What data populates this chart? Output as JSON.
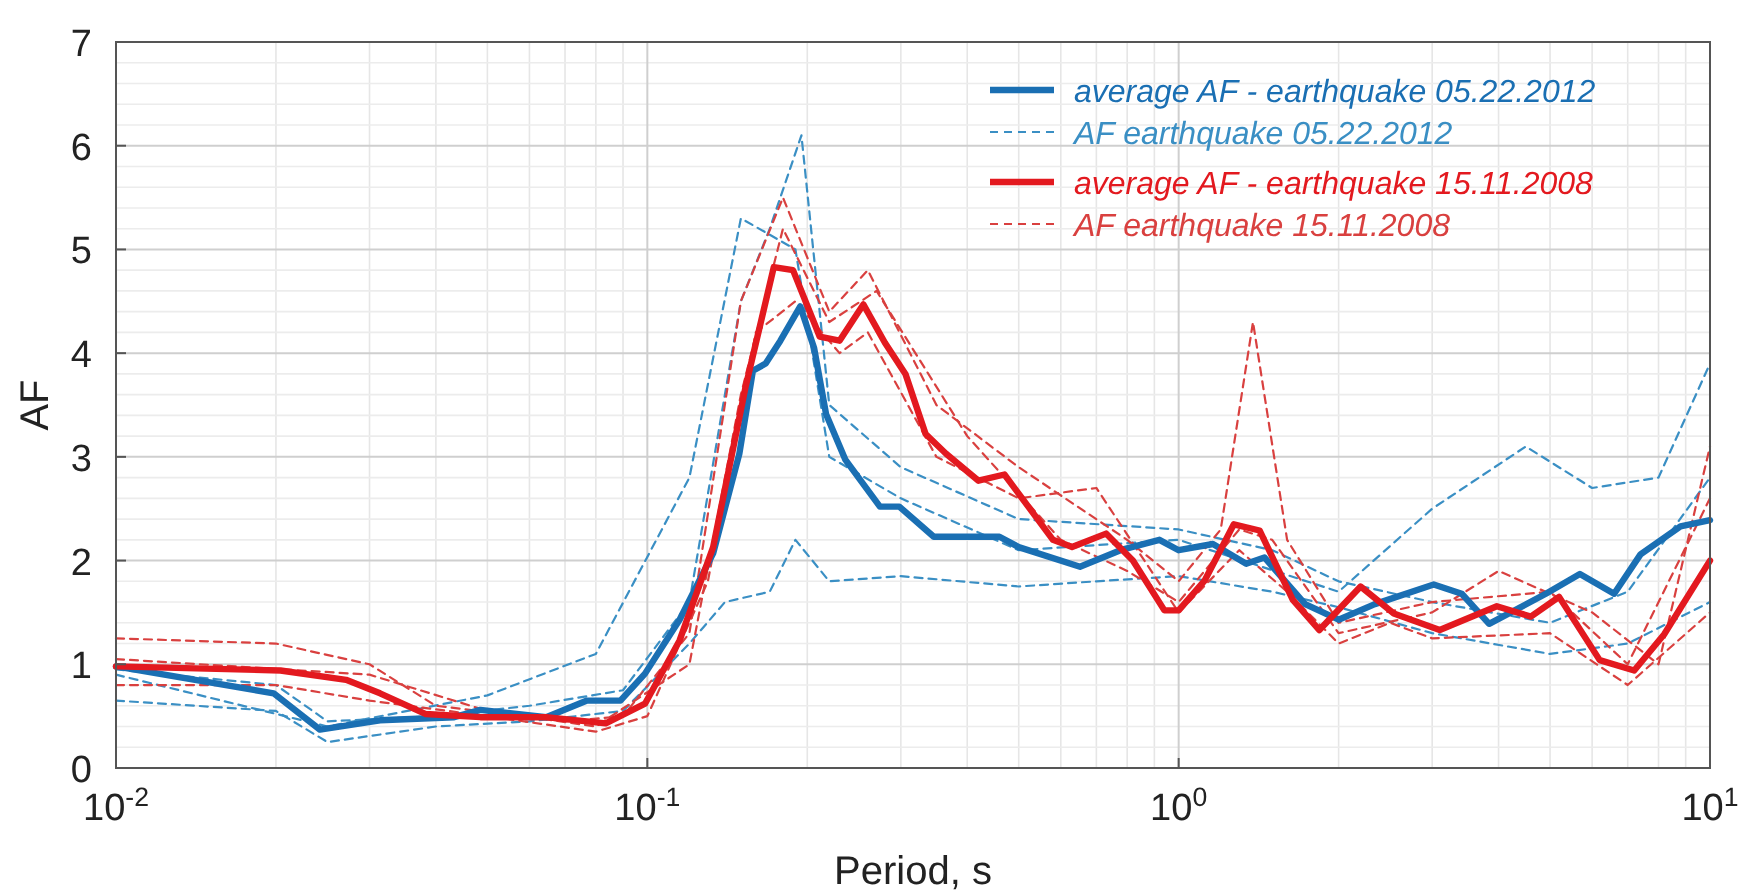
{
  "chart_data": {
    "type": "line",
    "xlabel": "Period, s",
    "ylabel": "AF",
    "log": "x",
    "grid": true,
    "legend": "top right",
    "xlim": [
      0.01,
      10
    ],
    "xticks": [
      {
        "value": 0.01,
        "label": "10$^{-2}$"
      },
      {
        "value": 0.1,
        "label": "10$^{-1}$"
      },
      {
        "value": 1,
        "label": "10$^{0}$"
      },
      {
        "value": 10,
        "label": "10$^{1}$"
      }
    ],
    "ylim": [
      0,
      7
    ],
    "yticks": [
      0,
      1,
      2,
      3,
      4,
      5,
      6,
      7
    ],
    "series": [
      {
        "name": "AF earthquake 05.22.2012",
        "color": "#3a8fc4",
        "line_style": "dashed",
        "x": [
          0.01,
          0.02,
          0.025,
          0.04,
          0.06,
          0.09,
          0.12,
          0.15,
          0.17,
          0.195,
          0.22,
          0.3,
          0.5,
          1,
          1.5,
          2,
          3,
          5,
          7,
          10
        ],
        "values": [
          0.95,
          0.8,
          0.45,
          0.5,
          0.6,
          0.75,
          1.6,
          4.5,
          5.2,
          6.1,
          3.5,
          2.9,
          2.4,
          2.3,
          2.1,
          1.8,
          1.6,
          1.4,
          1.7,
          2.8
        ]
      },
      {
        "color": "#3a8fc4",
        "line_style": "dashed",
        "x": [
          0.01,
          0.02,
          0.025,
          0.04,
          0.06,
          0.09,
          0.12,
          0.14,
          0.17,
          0.19,
          0.22,
          0.3,
          0.5,
          0.7,
          1,
          1.5,
          2,
          3,
          5,
          7,
          10
        ],
        "values": [
          0.65,
          0.55,
          0.25,
          0.4,
          0.45,
          0.55,
          1.2,
          1.6,
          1.7,
          2.2,
          1.8,
          1.85,
          1.75,
          1.8,
          1.85,
          1.7,
          1.55,
          1.3,
          1.1,
          1.2,
          1.6
        ]
      },
      {
        "color": "#3a8fc4",
        "line_style": "dashed",
        "x": [
          0.01,
          0.025,
          0.05,
          0.08,
          0.12,
          0.15,
          0.19,
          0.22,
          0.3,
          0.5,
          1,
          2,
          3,
          4.5,
          6,
          8,
          10
        ],
        "values": [
          0.9,
          0.4,
          0.7,
          1.1,
          2.8,
          5.3,
          5,
          3,
          2.6,
          2.1,
          2.2,
          1.7,
          2.5,
          3.1,
          2.7,
          2.8,
          3.9
        ]
      },
      {
        "name": "AF earthquake 15.11.2008",
        "color": "#d9403f",
        "line_style": "dashed",
        "x": [
          0.01,
          0.02,
          0.03,
          0.04,
          0.07,
          0.09,
          0.12,
          0.15,
          0.18,
          0.22,
          0.26,
          0.35,
          0.5,
          0.8,
          1,
          1.2,
          1.38,
          1.6,
          2,
          3,
          5,
          7,
          10
        ],
        "values": [
          1.25,
          1.2,
          1,
          0.6,
          0.45,
          0.5,
          1.3,
          4.5,
          5.5,
          4.4,
          4.8,
          3.5,
          2.9,
          2.2,
          1.8,
          2.3,
          4.3,
          2.2,
          1.4,
          1.6,
          1.7,
          1,
          2.6
        ]
      },
      {
        "color": "#d9403f",
        "line_style": "dashed",
        "x": [
          0.01,
          0.02,
          0.03,
          0.05,
          0.08,
          0.1,
          0.13,
          0.16,
          0.19,
          0.23,
          0.26,
          0.35,
          0.5,
          0.7,
          1,
          1.3,
          1.6,
          2,
          2.5,
          3,
          5,
          7,
          10
        ],
        "values": [
          0.8,
          0.8,
          0.65,
          0.5,
          0.35,
          0.5,
          1.8,
          4.2,
          4.5,
          4,
          4.2,
          3,
          2.6,
          2.7,
          1.5,
          2.1,
          1.7,
          1.2,
          1.4,
          1.25,
          1.3,
          0.8,
          1.5
        ]
      },
      {
        "color": "#d9403f",
        "line_style": "dashed",
        "x": [
          0.01,
          0.03,
          0.05,
          0.08,
          0.12,
          0.15,
          0.18,
          0.22,
          0.27,
          0.4,
          0.6,
          0.8,
          1,
          1.3,
          1.5,
          2,
          3,
          4,
          6,
          8,
          10
        ],
        "values": [
          1.05,
          0.9,
          0.55,
          0.4,
          1,
          3.6,
          5.2,
          4.3,
          4.6,
          3.2,
          2.2,
          1.9,
          1.6,
          2.3,
          2.2,
          1.3,
          1.5,
          1.9,
          1.5,
          1,
          3.1
        ]
      },
      {
        "name": "average AF - earthquake 05.22.2012",
        "color": "#1a6fb3",
        "line_style": "solid",
        "x": [
          0.01,
          0.0198,
          0.0242,
          0.0314,
          0.0433,
          0.0485,
          0.0645,
          0.077,
          0.089,
          0.099,
          0.115,
          0.133,
          0.149,
          0.158,
          0.167,
          0.178,
          0.194,
          0.206,
          0.217,
          0.236,
          0.274,
          0.298,
          0.346,
          0.46,
          0.5,
          0.652,
          0.777,
          0.92,
          1,
          1.16,
          1.34,
          1.45,
          1.73,
          2,
          2.34,
          3.02,
          3.41,
          3.84,
          4.91,
          5.69,
          6.6,
          7.4,
          8.8,
          10
        ],
        "values": [
          0.98,
          0.72,
          0.37,
          0.46,
          0.49,
          0.56,
          0.49,
          0.65,
          0.65,
          0.91,
          1.43,
          2.07,
          3.03,
          3.83,
          3.9,
          4.12,
          4.45,
          4.05,
          3.41,
          2.97,
          2.52,
          2.52,
          2.23,
          2.23,
          2.13,
          1.94,
          2.1,
          2.2,
          2.1,
          2.16,
          1.97,
          2.03,
          1.58,
          1.43,
          1.58,
          1.77,
          1.68,
          1.39,
          1.68,
          1.87,
          1.68,
          2.06,
          2.33,
          2.39
        ]
      },
      {
        "name": "average AF - earthquake 15.11.2008",
        "color": "#e3191f",
        "line_style": "solid",
        "x": [
          0.01,
          0.0204,
          0.0271,
          0.0314,
          0.0383,
          0.0485,
          0.0645,
          0.0835,
          0.099,
          0.115,
          0.133,
          0.153,
          0.173,
          0.188,
          0.211,
          0.23,
          0.255,
          0.28,
          0.306,
          0.334,
          0.365,
          0.42,
          0.47,
          0.58,
          0.63,
          0.73,
          0.82,
          0.94,
          1,
          1.12,
          1.27,
          1.42,
          1.64,
          1.84,
          2.2,
          2.54,
          3.1,
          3.97,
          4.6,
          5.2,
          6.2,
          7.2,
          8.2,
          10
        ],
        "values": [
          0.98,
          0.94,
          0.85,
          0.72,
          0.52,
          0.49,
          0.49,
          0.43,
          0.62,
          1.23,
          2.13,
          3.67,
          4.83,
          4.8,
          4.16,
          4.12,
          4.47,
          4.1,
          3.8,
          3.22,
          3.03,
          2.77,
          2.83,
          2.2,
          2.13,
          2.26,
          2,
          1.52,
          1.52,
          1.81,
          2.35,
          2.29,
          1.62,
          1.33,
          1.75,
          1.49,
          1.33,
          1.56,
          1.46,
          1.65,
          1.04,
          0.94,
          1.29,
          2
        ]
      }
    ]
  }
}
